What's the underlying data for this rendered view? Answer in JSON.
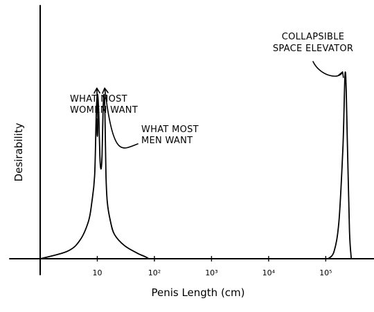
{
  "chart_data": {
    "type": "line",
    "title": "",
    "xlabel": "Penis Length (cm)",
    "ylabel": "Desirability",
    "x_scale": "log",
    "xlim": [
      1,
      400000
    ],
    "ylim": [
      0,
      1
    ],
    "grid": false,
    "legend": "none",
    "ticks": [
      {
        "value": 10,
        "label": "10"
      },
      {
        "value": 100,
        "label": "10²"
      },
      {
        "value": 1000,
        "label": "10³"
      },
      {
        "value": 10000,
        "label": "10⁴"
      },
      {
        "value": 100000,
        "label": "10⁵"
      }
    ],
    "series": [
      {
        "x": [
          1,
          3,
          5,
          7,
          8,
          9,
          9.6,
          10.1,
          10.6,
          11.1,
          11.6,
          12.1,
          12.6,
          13.1,
          13.6,
          14.2,
          15,
          17,
          20,
          30,
          50,
          70,
          80
        ],
        "y": [
          0.0,
          0.04,
          0.1,
          0.2,
          0.3,
          0.45,
          0.78,
          0.88,
          0.78,
          0.55,
          0.48,
          0.55,
          0.78,
          0.88,
          0.78,
          0.45,
          0.3,
          0.2,
          0.13,
          0.07,
          0.03,
          0.01,
          0.0
        ]
      },
      {
        "x": [
          110000,
          140000,
          170000,
          200000,
          220000,
          240000,
          260000,
          280000
        ],
        "y": [
          0.0,
          0.04,
          0.2,
          0.6,
          1.0,
          0.6,
          0.15,
          0.0
        ]
      }
    ],
    "annotations": [
      {
        "lines": [
          "WHAT MOST",
          "WOMEN WANT"
        ],
        "x": 10.1,
        "y": 0.88
      },
      {
        "lines": [
          "WHAT MOST",
          "MEN WANT"
        ],
        "x": 13.1,
        "y": 0.88
      },
      {
        "lines": [
          "COLLAPSIBLE",
          "SPACE ELEVATOR"
        ],
        "x": 220000,
        "y": 1.0
      }
    ]
  }
}
